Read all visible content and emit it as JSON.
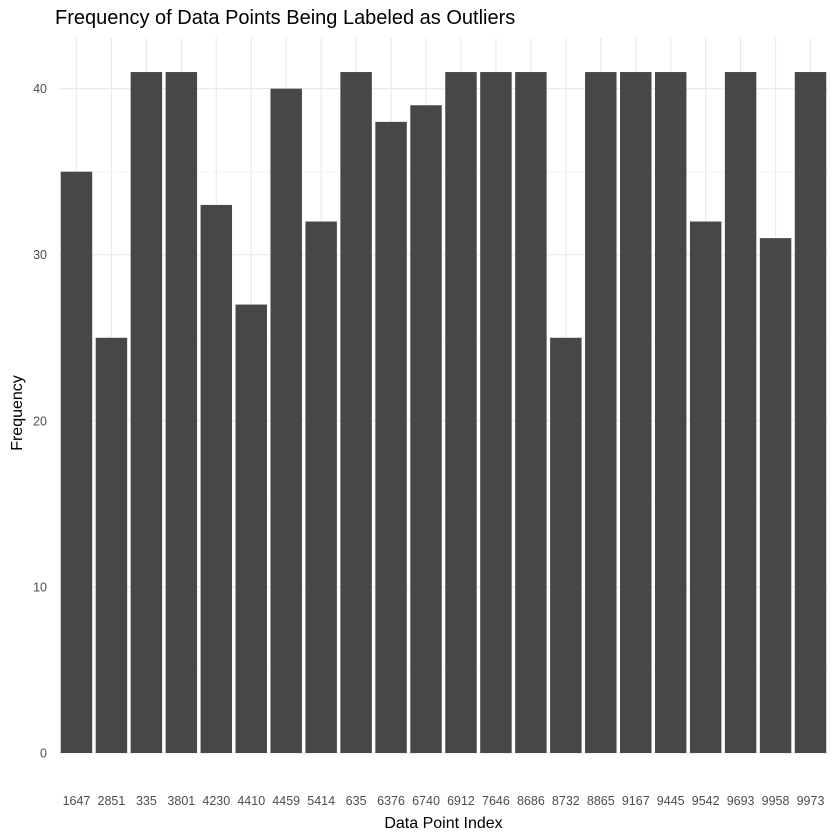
{
  "chart_data": {
    "type": "bar",
    "title": "Frequency of Data Points Being Labeled as Outliers",
    "xlabel": "Data Point Index",
    "ylabel": "Frequency",
    "categories": [
      "1647",
      "2851",
      "335",
      "3801",
      "4230",
      "4410",
      "4459",
      "5414",
      "635",
      "6376",
      "6740",
      "6912",
      "7646",
      "8686",
      "8732",
      "8865",
      "9167",
      "9445",
      "9542",
      "9693",
      "9958",
      "9973"
    ],
    "values": [
      35,
      25,
      41,
      41,
      33,
      27,
      40,
      32,
      41,
      38,
      39,
      41,
      41,
      41,
      25,
      41,
      41,
      41,
      32,
      41,
      31,
      41
    ],
    "yticks": [
      0,
      10,
      20,
      30,
      40
    ],
    "ylim": [
      0,
      43.05
    ],
    "grid": true,
    "legend": "none",
    "bar_color": "#474747"
  }
}
